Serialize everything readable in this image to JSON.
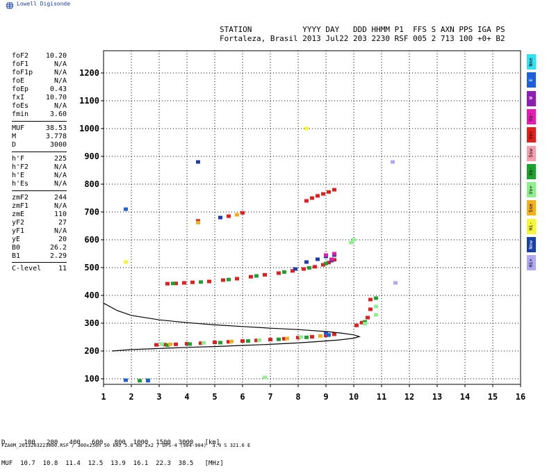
{
  "app": {
    "logo_text": "Lowell Digisonde",
    "logo_icon": "globe-icon"
  },
  "header": {
    "line1": "STATION           YYYY DAY   DDD HHMM P1  FFS S AXN PPS IGA PS",
    "line2": "Fortaleza, Brasil 2013 Jul22 203 2230 RSF 005 2 713 100 +0+ B2"
  },
  "params": [
    {
      "name": "foF2",
      "value": "10.20"
    },
    {
      "name": "foF1",
      "value": "N/A"
    },
    {
      "name": "foF1p",
      "value": "N/A"
    },
    {
      "name": "foE",
      "value": "N/A"
    },
    {
      "name": "foEp",
      "value": "0.43"
    },
    {
      "name": "fxI",
      "value": "10.70"
    },
    {
      "name": "foEs",
      "value": "N/A"
    },
    {
      "name": "fmin",
      "value": "3.60"
    },
    {
      "name": "MUF",
      "value": "38.53"
    },
    {
      "name": "M",
      "value": "3.778"
    },
    {
      "name": "D",
      "value": "3000"
    },
    {
      "name": "h'F",
      "value": "225"
    },
    {
      "name": "h'F2",
      "value": "N/A"
    },
    {
      "name": "h'E",
      "value": "N/A"
    },
    {
      "name": "h'Es",
      "value": "N/A"
    },
    {
      "name": "zmF2",
      "value": "244"
    },
    {
      "name": "zmF1",
      "value": "N/A"
    },
    {
      "name": "zmE",
      "value": "110"
    },
    {
      "name": "yF2",
      "value": "27"
    },
    {
      "name": "yF1",
      "value": "N/A"
    },
    {
      "name": "yE",
      "value": "20"
    },
    {
      "name": "B0",
      "value": "26.2"
    },
    {
      "name": "B1",
      "value": "2.29"
    },
    {
      "name": "C-level",
      "value": "11"
    }
  ],
  "legend": [
    {
      "label": "Nne",
      "color": "#33e0f0"
    },
    {
      "label": "E",
      "color": "#1f5fd8"
    },
    {
      "label": "W",
      "color": "#8a1fb0"
    },
    {
      "label": "Vo-",
      "color": "#e01fb0"
    },
    {
      "label": "Vo+",
      "color": "#e01f1f"
    },
    {
      "label": "Ssw",
      "color": "#f2a0b0"
    },
    {
      "label": "Vx-",
      "color": "#1fa030"
    },
    {
      "label": "Vx+",
      "color": "#90ee90"
    },
    {
      "label": "Sse",
      "color": "#f0b020"
    },
    {
      "label": "Hi-",
      "color": "#f5f53a"
    },
    {
      "label": "Nnw",
      "color": "#1a3fa8"
    },
    {
      "label": "Hi+",
      "color": "#b0a8f0"
    }
  ],
  "bottom": {
    "d_row": "D     100   200   400   600   800  1000  1500  3000   [km]",
    "muf_row": "MUF  10.7  10.8  11.4  12.5  13.9  16.1  22.3  38.5   [MHz]",
    "footer": "FZA0M_2013203223000.RSF / 300x256h 50 kHz 5.0 km 2x2 / DPS-4 (904-904)  3.9 S 321.6 E"
  },
  "chart_data": {
    "type": "scatter",
    "xlim": [
      1,
      16
    ],
    "ylim": [
      80,
      1280
    ],
    "xticks": [
      "1",
      "2",
      "3",
      "4",
      "5",
      "6",
      "7",
      "8",
      "9",
      "10",
      "11",
      "12",
      "13",
      "14",
      "15",
      "16"
    ],
    "yticks": [
      "100",
      "200",
      "300",
      "400",
      "500",
      "600",
      "700",
      "800",
      "900",
      "1000",
      "1100",
      "1200"
    ],
    "grid": true,
    "series": [
      {
        "color": "#e01f1f",
        "points": [
          [
            2.9,
            222
          ],
          [
            3.2,
            223
          ],
          [
            3.6,
            224
          ],
          [
            4.0,
            226
          ],
          [
            4.5,
            228
          ],
          [
            5.0,
            231
          ],
          [
            5.5,
            233
          ],
          [
            6.0,
            236
          ],
          [
            6.5,
            238
          ],
          [
            7.0,
            241
          ],
          [
            7.5,
            244
          ],
          [
            8.0,
            248
          ],
          [
            8.5,
            251
          ],
          [
            9.0,
            256
          ],
          [
            9.3,
            260
          ],
          [
            10.1,
            292
          ],
          [
            10.3,
            302
          ],
          [
            10.5,
            320
          ],
          [
            10.6,
            350
          ],
          [
            10.6,
            385
          ]
        ]
      },
      {
        "color": "#1fa030",
        "points": [
          [
            1.8,
            95
          ],
          [
            2.3,
            93
          ],
          [
            2.6,
            95
          ],
          [
            3.3,
            221
          ],
          [
            4.1,
            225
          ],
          [
            5.2,
            230
          ],
          [
            6.2,
            236
          ],
          [
            7.3,
            242
          ],
          [
            8.3,
            249
          ],
          [
            9.1,
            257
          ],
          [
            10.4,
            305
          ],
          [
            10.8,
            390
          ]
        ]
      },
      {
        "color": "#90ee90",
        "points": [
          [
            3.1,
            225
          ],
          [
            4.6,
            229
          ],
          [
            6.6,
            239
          ],
          [
            8.1,
            250
          ],
          [
            10.4,
            298
          ],
          [
            10.8,
            360
          ],
          [
            10.8,
            330
          ]
        ]
      },
      {
        "color": "#f0b020",
        "points": [
          [
            3.4,
            224
          ],
          [
            5.6,
            234
          ],
          [
            7.6,
            245
          ],
          [
            8.8,
            254
          ]
        ]
      },
      {
        "color": "#1f5fd8",
        "points": [
          [
            1.8,
            710
          ],
          [
            1.8,
            95
          ],
          [
            2.6,
            93
          ],
          [
            9.0,
            265
          ],
          [
            9.1,
            258
          ]
        ]
      },
      {
        "color": "#e01f1f",
        "points": [
          [
            3.3,
            442
          ],
          [
            3.6,
            443
          ],
          [
            3.9,
            445
          ],
          [
            4.2,
            447
          ],
          [
            4.8,
            450
          ],
          [
            5.3,
            455
          ],
          [
            5.8,
            460
          ],
          [
            6.3,
            467
          ],
          [
            6.8,
            474
          ],
          [
            7.3,
            480
          ],
          [
            7.8,
            488
          ],
          [
            8.2,
            495
          ],
          [
            8.6,
            503
          ],
          [
            8.9,
            510
          ],
          [
            9.1,
            518
          ],
          [
            9.3,
            528
          ]
        ]
      },
      {
        "color": "#1fa030",
        "points": [
          [
            3.5,
            443
          ],
          [
            4.5,
            448
          ],
          [
            5.5,
            457
          ],
          [
            6.5,
            470
          ],
          [
            7.5,
            484
          ],
          [
            8.4,
            499
          ],
          [
            9.0,
            515
          ]
        ]
      },
      {
        "color": "#1a3fa8",
        "points": [
          [
            4.4,
            880
          ],
          [
            5.2,
            680
          ],
          [
            7.9,
            495
          ],
          [
            8.3,
            520
          ],
          [
            8.7,
            530
          ],
          [
            9.0,
            540
          ],
          [
            9.3,
            545
          ],
          [
            9.2,
            525
          ]
        ]
      },
      {
        "color": "#e01f1f",
        "points": [
          [
            8.3,
            740
          ],
          [
            8.5,
            750
          ],
          [
            8.7,
            758
          ],
          [
            8.9,
            765
          ],
          [
            9.1,
            772
          ],
          [
            9.3,
            780
          ],
          [
            4.4,
            668
          ],
          [
            5.5,
            685
          ],
          [
            6.0,
            697
          ]
        ]
      },
      {
        "color": "#f0b020",
        "points": [
          [
            4.4,
            662
          ],
          [
            5.8,
            690
          ]
        ]
      },
      {
        "color": "#e01fb0",
        "points": [
          [
            9.0,
            545
          ],
          [
            9.3,
            550
          ],
          [
            9.2,
            530
          ]
        ]
      },
      {
        "color": "#b0a8f0",
        "points": [
          [
            11.4,
            880
          ],
          [
            11.5,
            445
          ]
        ]
      },
      {
        "color": "#90ee90",
        "points": [
          [
            9.9,
            590
          ],
          [
            10.0,
            600
          ],
          [
            6.8,
            105
          ]
        ]
      },
      {
        "color": "#f5f53a",
        "points": [
          [
            1.8,
            520
          ],
          [
            8.3,
            1000
          ]
        ]
      }
    ],
    "curve_lines": [
      {
        "color": "#000000",
        "points": [
          [
            1.0,
            372
          ],
          [
            1.5,
            345
          ],
          [
            2.0,
            328
          ],
          [
            3.0,
            312
          ],
          [
            4.0,
            302
          ],
          [
            5.0,
            294
          ],
          [
            6.0,
            288
          ],
          [
            7.0,
            282
          ],
          [
            8.0,
            277
          ],
          [
            9.0,
            270
          ],
          [
            9.5,
            265
          ],
          [
            10.0,
            258
          ],
          [
            10.2,
            252
          ],
          [
            10.0,
            246
          ],
          [
            9.5,
            240
          ],
          [
            9.0,
            236
          ],
          [
            8.0,
            229
          ],
          [
            7.0,
            224
          ],
          [
            6.0,
            220
          ],
          [
            5.0,
            216
          ],
          [
            4.0,
            213
          ],
          [
            3.0,
            209
          ],
          [
            2.0,
            205
          ],
          [
            1.3,
            200
          ]
        ]
      }
    ]
  }
}
